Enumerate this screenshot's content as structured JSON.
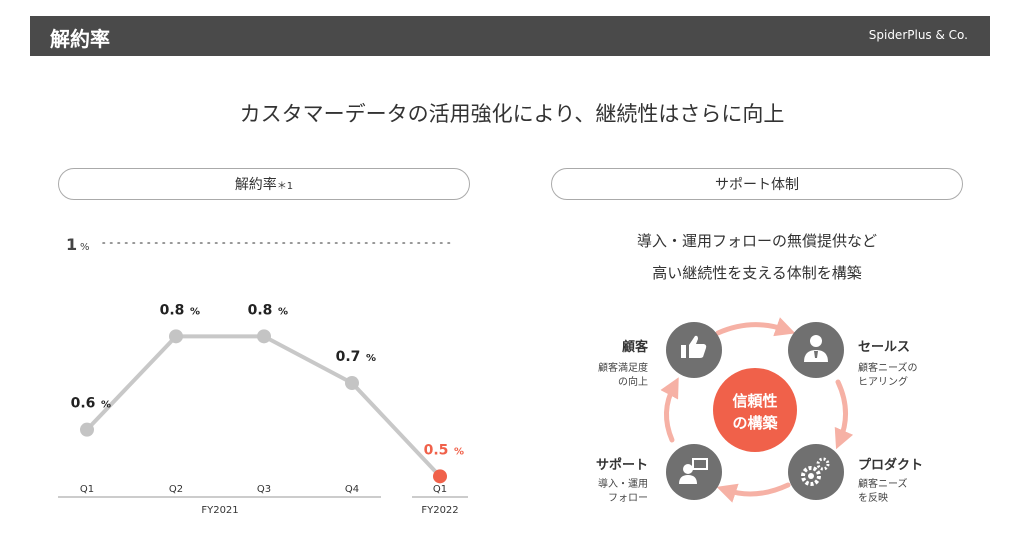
{
  "header": {
    "title": "解約率",
    "brand": "SpiderPlus & Co."
  },
  "headline": "カスタマーデータの活用強化により、継続性はさらに向上",
  "left_panel": {
    "title": "解約率",
    "note": "＊1"
  },
  "right_panel": {
    "title": "サポート体制",
    "desc_line1": "導入・運用フォローの無償提供など",
    "desc_line2": "高い継続性を支える体制を構築",
    "center_line1": "信頼性",
    "center_line2": "の構築",
    "nodes": [
      {
        "title": "顧客",
        "desc_line1": "顧客満足度",
        "desc_line2": "の向上",
        "icon": "thumbs-up-icon"
      },
      {
        "title": "セールス",
        "desc_line1": "顧客ニーズの",
        "desc_line2": "ヒアリング",
        "icon": "person-suit-icon"
      },
      {
        "title": "プロダクト",
        "desc_line1": "顧客ニーズ",
        "desc_line2": "を反映",
        "icon": "gears-icon"
      },
      {
        "title": "サポート",
        "desc_line1": "導入・運用",
        "desc_line2": "フォロー",
        "icon": "support-person-icon"
      }
    ],
    "colors": {
      "circle": "#707070",
      "center": "#f0614a",
      "arrows": "#f6b1a5"
    }
  },
  "chart_data": {
    "type": "line",
    "categories": [
      "Q1",
      "Q2",
      "Q3",
      "Q4",
      "Q1"
    ],
    "values": [
      0.6,
      0.8,
      0.8,
      0.7,
      0.5
    ],
    "value_labels": [
      "0.6",
      "0.8",
      "0.8",
      "0.7",
      "0.5"
    ],
    "unit": "%",
    "groups": [
      {
        "label": "FY2021",
        "span": [
          0,
          3
        ]
      },
      {
        "label": "FY2022",
        "span": [
          4,
          4
        ]
      }
    ],
    "reference": {
      "value": 1,
      "label": "1"
    },
    "ylim": [
      0.4,
      1.0
    ],
    "colors": {
      "line": "#c8c8c8",
      "point": "#c4c4c4",
      "highlight": "#f0614a"
    }
  }
}
